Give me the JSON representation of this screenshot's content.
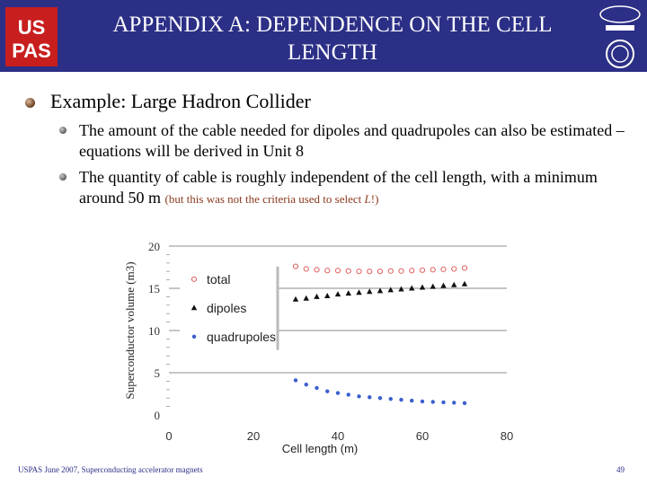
{
  "slide": {
    "title": "APPENDIX A: DEPENDENCE ON THE CELL LENGTH",
    "bullet_main": "Example: Large Hadron Collider",
    "sub1": "The amount of the cable needed for dipoles and quadrupoles can also be estimated – equations will be derived in Unit 8",
    "sub2_main": "The quantity of cable is roughly independent of the cell length, with a minimum around 50 m",
    "sub2_note_a": "(but this was not the criteria used to select ",
    "sub2_note_L": "L",
    "sub2_note_b": "!)",
    "footer": "USPAS June 2007,  Superconducting accelerator magnets",
    "page_number": "49",
    "colors": {
      "header_bg": "#2b2f86",
      "total": "#e06060",
      "dipoles": "#111111",
      "quadrupoles": "#3a5fcd"
    }
  },
  "chart_data": {
    "type": "scatter",
    "xlabel": "Cell length (m)",
    "ylabel": "Superconductor volume (m3)",
    "xlim": [
      0,
      80
    ],
    "ylim": [
      0,
      20
    ],
    "xticks": [
      0,
      20,
      40,
      60,
      80
    ],
    "yticks": [
      0,
      5,
      10,
      15,
      20
    ],
    "grid": "horizontal",
    "legend_position": "left",
    "series": [
      {
        "name": "total",
        "marker": "open-circle",
        "x": [
          30,
          32.5,
          35,
          37.5,
          40,
          42.5,
          45,
          47.5,
          50,
          52.5,
          55,
          57.5,
          60,
          62.5,
          65,
          67.5,
          70
        ],
        "y": [
          17.6,
          17.3,
          17.2,
          17.1,
          17.1,
          17.05,
          17.0,
          17.0,
          17.0,
          17.05,
          17.05,
          17.1,
          17.15,
          17.2,
          17.25,
          17.3,
          17.4
        ]
      },
      {
        "name": "dipoles",
        "marker": "triangle",
        "x": [
          30,
          32.5,
          35,
          37.5,
          40,
          42.5,
          45,
          47.5,
          50,
          52.5,
          55,
          57.5,
          60,
          62.5,
          65,
          67.5,
          70
        ],
        "y": [
          13.7,
          13.8,
          14.0,
          14.1,
          14.3,
          14.4,
          14.5,
          14.6,
          14.7,
          14.8,
          14.9,
          15.0,
          15.1,
          15.2,
          15.3,
          15.4,
          15.5
        ]
      },
      {
        "name": "quadrupoles",
        "marker": "filled-circle",
        "x": [
          30,
          32.5,
          35,
          37.5,
          40,
          42.5,
          45,
          47.5,
          50,
          52.5,
          55,
          57.5,
          60,
          62.5,
          65,
          67.5,
          70
        ],
        "y": [
          4.1,
          3.6,
          3.2,
          2.8,
          2.6,
          2.4,
          2.2,
          2.1,
          2.0,
          1.9,
          1.8,
          1.7,
          1.6,
          1.55,
          1.5,
          1.45,
          1.4
        ]
      }
    ]
  }
}
